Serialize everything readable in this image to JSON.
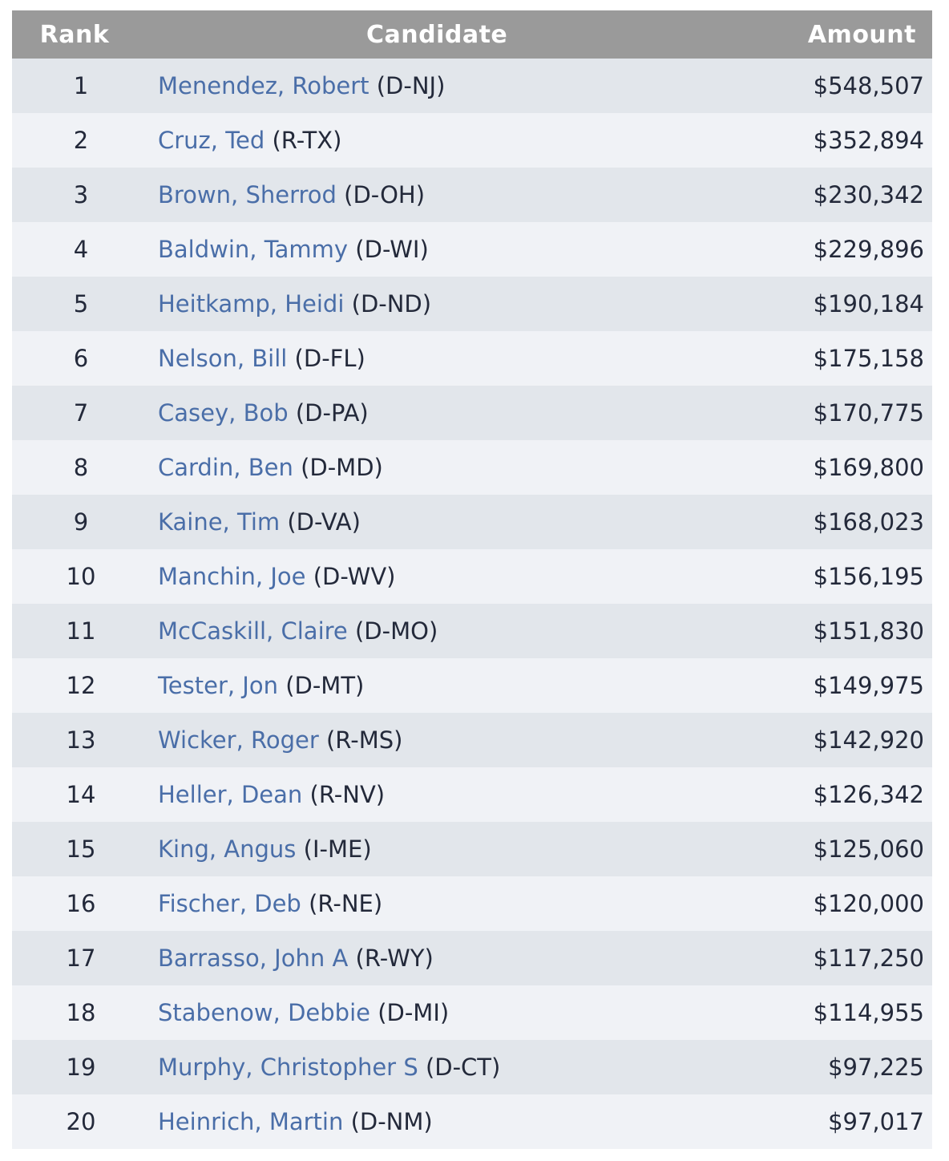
{
  "table": {
    "headers": {
      "rank": "Rank",
      "candidate": "Candidate",
      "amount": "Amount"
    },
    "rows": [
      {
        "rank": "1",
        "name": "Menendez, Robert",
        "party": "(D-NJ)",
        "amount": "$548,507"
      },
      {
        "rank": "2",
        "name": "Cruz, Ted",
        "party": "(R-TX)",
        "amount": "$352,894"
      },
      {
        "rank": "3",
        "name": "Brown, Sherrod",
        "party": "(D-OH)",
        "amount": "$230,342"
      },
      {
        "rank": "4",
        "name": "Baldwin, Tammy",
        "party": "(D-WI)",
        "amount": "$229,896"
      },
      {
        "rank": "5",
        "name": "Heitkamp, Heidi",
        "party": "(D-ND)",
        "amount": "$190,184"
      },
      {
        "rank": "6",
        "name": "Nelson, Bill",
        "party": "(D-FL)",
        "amount": "$175,158"
      },
      {
        "rank": "7",
        "name": "Casey, Bob",
        "party": "(D-PA)",
        "amount": "$170,775"
      },
      {
        "rank": "8",
        "name": "Cardin, Ben",
        "party": "(D-MD)",
        "amount": "$169,800"
      },
      {
        "rank": "9",
        "name": "Kaine, Tim",
        "party": "(D-VA)",
        "amount": "$168,023"
      },
      {
        "rank": "10",
        "name": "Manchin, Joe",
        "party": "(D-WV)",
        "amount": "$156,195"
      },
      {
        "rank": "11",
        "name": "McCaskill, Claire",
        "party": "(D-MO)",
        "amount": "$151,830"
      },
      {
        "rank": "12",
        "name": "Tester, Jon",
        "party": "(D-MT)",
        "amount": "$149,975"
      },
      {
        "rank": "13",
        "name": "Wicker, Roger",
        "party": "(R-MS)",
        "amount": "$142,920"
      },
      {
        "rank": "14",
        "name": "Heller, Dean",
        "party": "(R-NV)",
        "amount": "$126,342"
      },
      {
        "rank": "15",
        "name": "King, Angus",
        "party": "(I-ME)",
        "amount": "$125,060"
      },
      {
        "rank": "16",
        "name": "Fischer, Deb",
        "party": "(R-NE)",
        "amount": "$120,000"
      },
      {
        "rank": "17",
        "name": "Barrasso, John A",
        "party": "(R-WY)",
        "amount": "$117,250"
      },
      {
        "rank": "18",
        "name": "Stabenow, Debbie",
        "party": "(D-MI)",
        "amount": "$114,955"
      },
      {
        "rank": "19",
        "name": "Murphy, Christopher S",
        "party": "(D-CT)",
        "amount": "$97,225"
      },
      {
        "rank": "20",
        "name": "Heinrich, Martin",
        "party": "(D-NM)",
        "amount": "$97,017"
      }
    ]
  },
  "colors": {
    "header_bg": "#9a9a9a",
    "row_odd_bg": "#e2e6eb",
    "row_even_bg": "#f0f2f6",
    "link": "#4a6ea8",
    "text": "#23293a"
  }
}
